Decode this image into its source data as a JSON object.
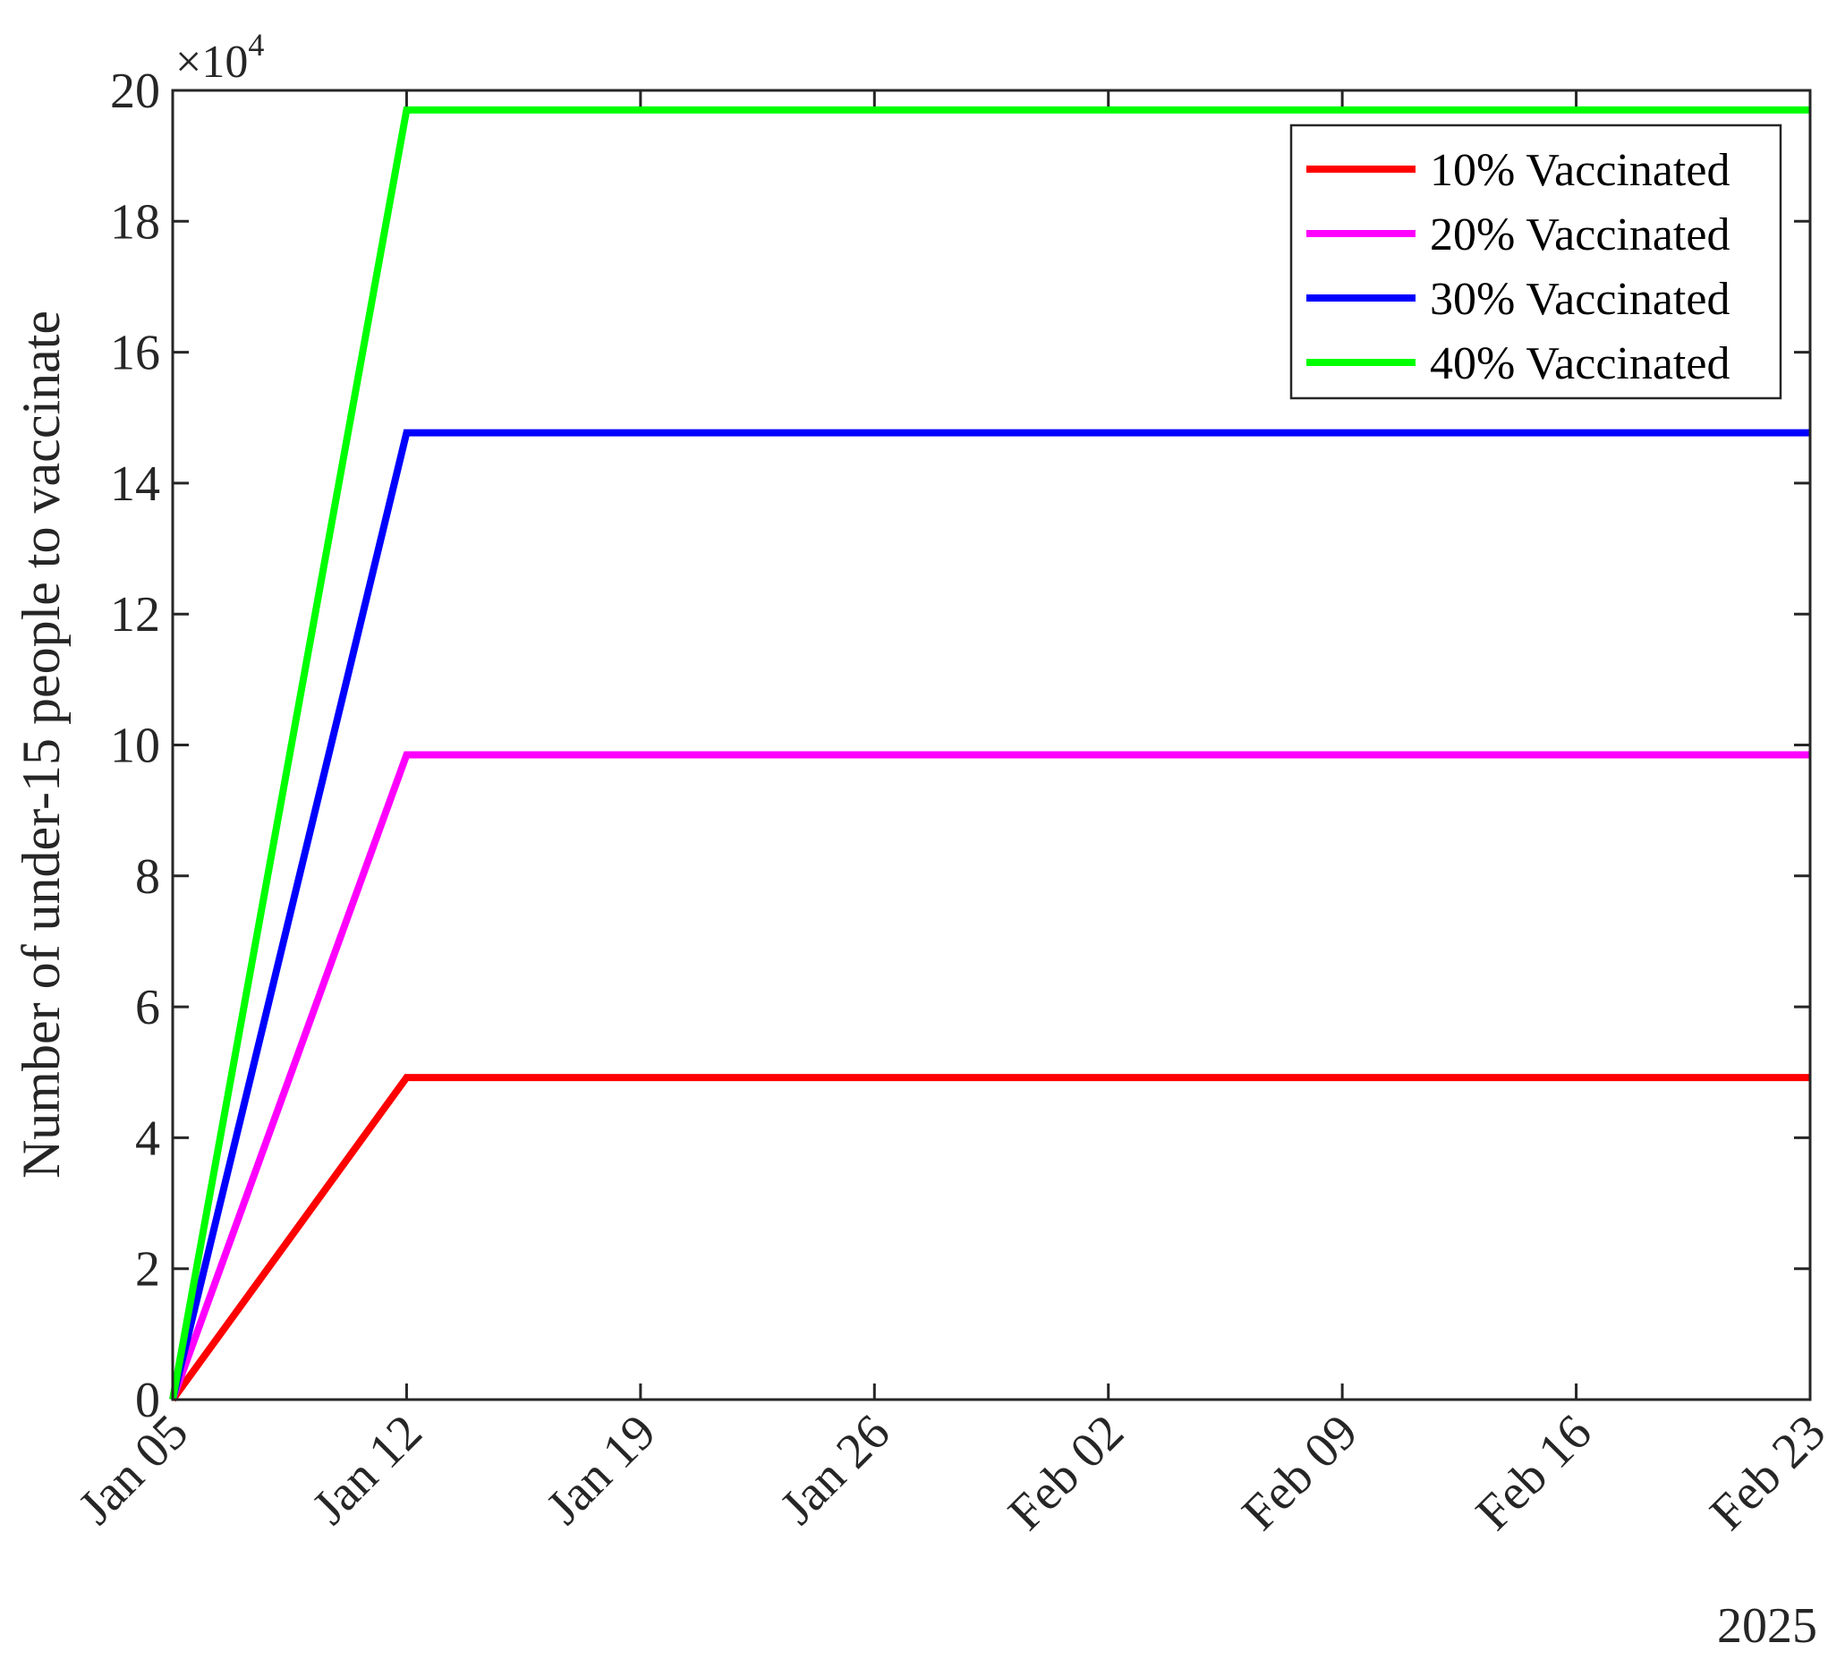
{
  "chart_data": {
    "type": "line",
    "title": "",
    "xlabel": "",
    "ylabel": "Number of under-15 people to vaccinate",
    "y_multiplier_label": "×10",
    "y_multiplier_exponent": "4",
    "x_secondary_label": "2025",
    "x_ticks": [
      "Jan 05",
      "Jan 12",
      "Jan 19",
      "Jan 26",
      "Feb 02",
      "Feb 09",
      "Feb 16",
      "Feb 23"
    ],
    "x": [
      "2025-01-05",
      "2025-01-12",
      "2025-02-23"
    ],
    "xlim": [
      "2025-01-05",
      "2025-02-23"
    ],
    "y_ticks": [
      "0",
      "2",
      "4",
      "6",
      "8",
      "10",
      "12",
      "14",
      "16",
      "18",
      "20"
    ],
    "ylim": [
      0,
      200000
    ],
    "grid": false,
    "legend_position": "top-right",
    "series": [
      {
        "name": "10% Vaccinated",
        "color": "#ff0000",
        "values": [
          0,
          49200,
          49200
        ]
      },
      {
        "name": "20% Vaccinated",
        "color": "#ff00ff",
        "values": [
          0,
          98500,
          98500
        ]
      },
      {
        "name": "30% Vaccinated",
        "color": "#0000ff",
        "values": [
          0,
          147700,
          147700
        ]
      },
      {
        "name": "40% Vaccinated",
        "color": "#00ff00",
        "values": [
          0,
          197000,
          197000
        ]
      }
    ]
  }
}
